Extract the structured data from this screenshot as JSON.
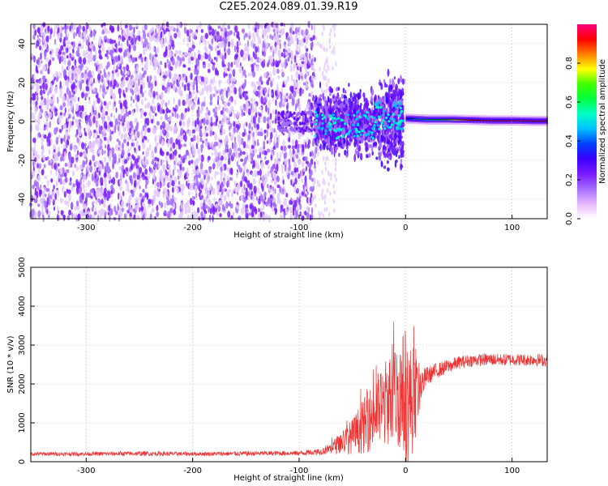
{
  "title": "C2E5.2024.089.01.39.R19",
  "colors": {
    "series": "#ee3333",
    "scatter": "#7a1cff",
    "colormap": [
      "#ffffff",
      "#e8b8ff",
      "#a36bff",
      "#7a1cff",
      "#3a00ff",
      "#0040ff",
      "#00c0ff",
      "#00ffc8",
      "#00ff40",
      "#40ff00",
      "#ffff00",
      "#ff8000",
      "#ff0000",
      "#ff0080"
    ]
  },
  "chart_data": [
    {
      "type": "heatmap",
      "xlabel": "Height of straight line (km)",
      "ylabel": "Frequency (Hz)",
      "xlim": [
        -352,
        133
      ],
      "ylim": [
        -50,
        50
      ],
      "xticks": [
        -300,
        -200,
        -100,
        0,
        100
      ],
      "yticks": [
        -40,
        -20,
        0,
        20,
        40
      ],
      "colorbar": {
        "label": "Normalized spectral amplitude",
        "range": [
          0,
          1
        ],
        "ticks": [
          "0.0",
          "0.2",
          "0.4",
          "0.6",
          "0.8"
        ]
      },
      "features": [
        {
          "x_range": [
            -352,
            -85
          ],
          "y_range": [
            -50,
            50
          ],
          "amplitude": 0.05,
          "description_level": "noise"
        },
        {
          "x_range": [
            -85,
            -2
          ],
          "y_range": [
            -25,
            20
          ],
          "amplitude": 0.3
        },
        {
          "x_range": [
            -2,
            133
          ],
          "y_center": 0.5,
          "amplitude": 0.85
        }
      ],
      "carrier_line": {
        "x": [
          0,
          20,
          40,
          60,
          80,
          100,
          120,
          133
        ],
        "y": [
          1.5,
          1,
          1,
          0.8,
          0.5,
          0.5,
          0.3,
          0.3
        ]
      }
    },
    {
      "type": "line",
      "xlabel": "Height of straight line (km)",
      "ylabel": "SNR (10 * v/v)",
      "xlim": [
        -352,
        133
      ],
      "ylim": [
        0,
        5000
      ],
      "xticks": [
        -300,
        -200,
        -100,
        0,
        100
      ],
      "yticks": [
        0,
        1000,
        2000,
        3000,
        4000,
        5000
      ],
      "series": [
        {
          "x": [
            -352,
            -300,
            -250,
            -200,
            -150,
            -100,
            -80,
            -70,
            -60,
            -50,
            -40,
            -30,
            -20,
            -10,
            -5,
            0,
            5,
            10,
            15,
            20,
            30,
            40,
            50,
            60,
            70,
            80,
            90,
            100,
            110,
            120,
            133
          ],
          "y": [
            200,
            200,
            210,
            200,
            210,
            220,
            260,
            350,
            500,
            650,
            900,
            1200,
            1500,
            1700,
            1800,
            1600,
            1500,
            1700,
            2000,
            2200,
            2350,
            2450,
            2550,
            2600,
            2620,
            2630,
            2620,
            2630,
            2620,
            2630,
            2600
          ],
          "spread": [
            50,
            50,
            60,
            50,
            60,
            60,
            80,
            150,
            300,
            450,
            700,
            900,
            1100,
            1300,
            1500,
            1800,
            1500,
            1000,
            400,
            250,
            200,
            180,
            170,
            160,
            160,
            160,
            160,
            160,
            160,
            160,
            160
          ]
        }
      ]
    }
  ]
}
